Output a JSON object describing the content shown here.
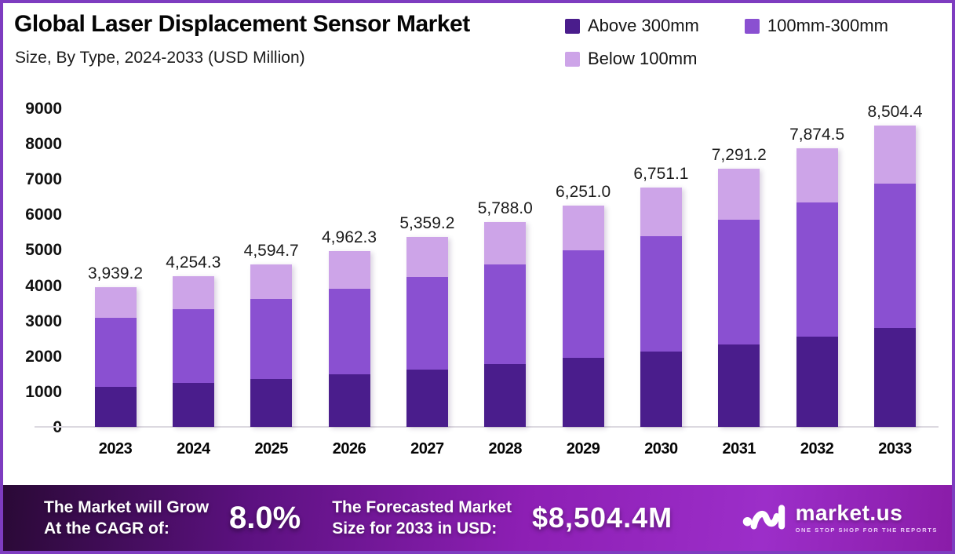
{
  "header": {
    "title": "Global Laser Displacement Sensor Market",
    "subtitle": "Size, By Type, 2024-2033 (USD Million)"
  },
  "legend": [
    {
      "label": "Above 300mm",
      "color": "#4a1d8c"
    },
    {
      "label": "100mm-300mm",
      "color": "#8a50d1"
    },
    {
      "label": "Below 100mm",
      "color": "#cda4e8"
    }
  ],
  "chart_data": {
    "type": "bar",
    "stacked": true,
    "title": "Global Laser Displacement Sensor Market Size, By Type, 2024-2033 (USD Million)",
    "categories": [
      "2023",
      "2024",
      "2025",
      "2026",
      "2027",
      "2028",
      "2029",
      "2030",
      "2031",
      "2032",
      "2033"
    ],
    "series": [
      {
        "name": "Above 300mm",
        "color": "#4a1d8c",
        "values": [
          1122.7,
          1230.8,
          1349.0,
          1478.3,
          1619.6,
          1774.0,
          1942.8,
          2127.3,
          2328.8,
          2548.9,
          2789.4
        ]
      },
      {
        "name": "100mm-300mm",
        "color": "#8a50d1",
        "values": [
          1949.9,
          2099.1,
          2259.7,
          2432.6,
          2618.5,
          2818.8,
          3034.2,
          3266.2,
          3515.8,
          3784.5,
          4073.6
        ]
      },
      {
        "name": "Below 100mm",
        "color": "#cda4e8",
        "values": [
          866.6,
          924.4,
          986.0,
          1051.4,
          1121.1,
          1195.2,
          1274.0,
          1357.6,
          1446.6,
          1541.1,
          1641.4
        ]
      }
    ],
    "totals": [
      3939.2,
      4254.3,
      4594.7,
      4962.3,
      5359.2,
      5788.0,
      6251.0,
      6751.1,
      7291.2,
      7874.5,
      8504.4
    ],
    "total_labels": [
      "3,939.2",
      "4,254.3",
      "4,594.7",
      "4,962.3",
      "5,359.2",
      "5,788.0",
      "6,251.0",
      "6,751.1",
      "7,291.2",
      "7,874.5",
      "8,504.4"
    ],
    "xlabel": "",
    "ylabel": "",
    "ylim": [
      0,
      9000
    ],
    "y_ticks": [
      0,
      1000,
      2000,
      3000,
      4000,
      5000,
      6000,
      7000,
      8000,
      9000
    ],
    "grid": false,
    "legend_position": "top-right"
  },
  "banner": {
    "cagr_label_line1": "The Market will Grow",
    "cagr_label_line2": "At the CAGR of:",
    "cagr_value": "8.0%",
    "forecast_label_line1": "The Forecasted Market",
    "forecast_label_line2": "Size for 2033 in USD:",
    "forecast_value": "$8,504.4M",
    "brand": {
      "name": "market.us",
      "tagline": "ONE STOP SHOP FOR THE REPORTS"
    }
  },
  "colors": {
    "frame_border": "#7e3cc0",
    "banner_gradient_start": "#2a0936",
    "banner_gradient_mid": "#8d1fb4",
    "banner_gradient_end": "#8a1ca8",
    "axis_line": "#dcd9e0",
    "text": "#111111"
  }
}
